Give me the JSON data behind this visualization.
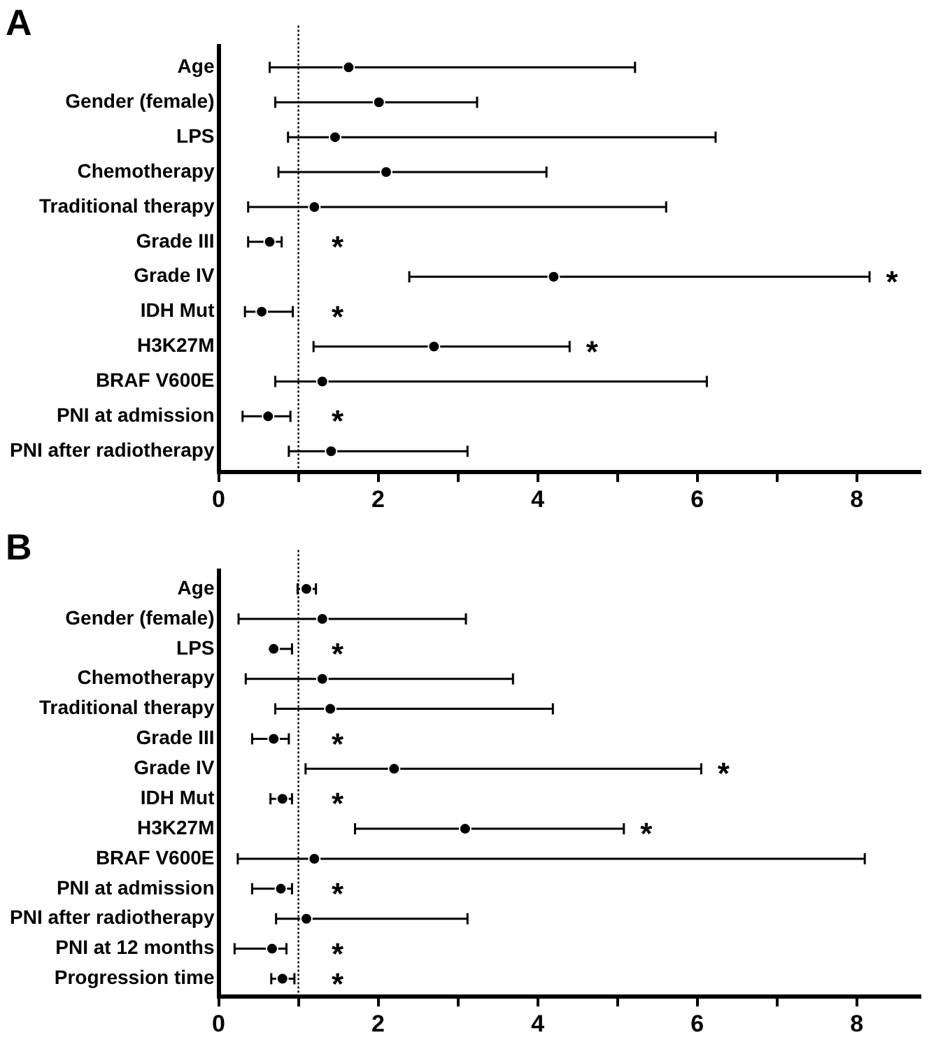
{
  "chart_data": [
    {
      "type": "scatter",
      "title": "A",
      "orientation": "horizontal",
      "marker": "circle",
      "color": "#000000",
      "categories": [
        "Age",
        "Gender (female)",
        "LPS",
        "Chemotherapy",
        "Traditional therapy",
        "Grade III",
        "Grade IV",
        "IDH Mut",
        "H3K27M",
        "BRAF V600E",
        "PNI at admission",
        "PNI after radiotherapy"
      ],
      "values": [
        1.63,
        2.01,
        1.46,
        2.1,
        1.2,
        0.64,
        4.2,
        0.54,
        2.7,
        1.3,
        0.62,
        1.41
      ],
      "errors": [
        [
          0.64,
          5.22
        ],
        [
          0.71,
          3.24
        ],
        [
          0.87,
          6.23
        ],
        [
          0.75,
          4.11
        ],
        [
          0.37,
          5.61
        ],
        [
          0.37,
          0.79
        ],
        [
          2.39,
          8.16
        ],
        [
          0.33,
          0.93
        ],
        [
          1.19,
          4.4
        ],
        [
          0.71,
          6.12
        ],
        [
          0.3,
          0.9
        ],
        [
          0.88,
          3.12
        ]
      ],
      "xlim": [
        0,
        8.8
      ],
      "xticks": [
        0,
        {
          "value": 1,
          "label": null
        },
        2,
        {
          "value": 3,
          "label": null
        },
        4,
        {
          "value": 5,
          "label": null
        },
        6,
        {
          "value": 7,
          "label": null
        },
        8
      ],
      "ref_lines": [
        {
          "axis": "x",
          "value": 1,
          "line_style": "dotted",
          "color": "#000000"
        }
      ],
      "annotations": [
        {
          "text": "*",
          "x": 0.79,
          "y": "Grade III"
        },
        {
          "text": "*",
          "x": 8.16,
          "y": "Grade IV"
        },
        {
          "text": "*",
          "x": 0.93,
          "y": "IDH Mut"
        },
        {
          "text": "*",
          "x": 4.4,
          "y": "H3K27M"
        },
        {
          "text": "*",
          "x": 0.9,
          "y": "PNI at admission"
        }
      ]
    },
    {
      "type": "scatter",
      "title": "B",
      "orientation": "horizontal",
      "marker": "circle",
      "color": "#000000",
      "categories": [
        "Age",
        "Gender (female)",
        "LPS",
        "Chemotherapy",
        "Traditional therapy",
        "Grade III",
        "Grade IV",
        "IDH Mut",
        "H3K27M",
        "BRAF V600E",
        "PNI at admission",
        "PNI after radiotherapy",
        "PNI at 12 months",
        "Progression time"
      ],
      "values": [
        1.1,
        1.3,
        0.69,
        1.3,
        1.4,
        0.69,
        2.2,
        0.8,
        3.09,
        1.2,
        0.78,
        1.1,
        0.67,
        0.8
      ],
      "errors": [
        [
          0.99,
          1.22
        ],
        [
          0.25,
          3.1
        ],
        [
          0.66,
          0.92
        ],
        [
          0.34,
          3.69
        ],
        [
          0.71,
          4.19
        ],
        [
          0.42,
          0.88
        ],
        [
          1.09,
          6.05
        ],
        [
          0.65,
          0.92
        ],
        [
          1.71,
          5.08
        ],
        [
          0.24,
          8.1
        ],
        [
          0.42,
          0.92
        ],
        [
          0.72,
          3.12
        ],
        [
          0.2,
          0.85
        ],
        [
          0.66,
          0.95
        ]
      ],
      "xlim": [
        0,
        8.8
      ],
      "xticks": [
        0,
        {
          "value": 1,
          "label": null
        },
        2,
        {
          "value": 3,
          "label": null
        },
        4,
        {
          "value": 5,
          "label": null
        },
        6,
        {
          "value": 7,
          "label": null
        },
        8
      ],
      "ref_lines": [
        {
          "axis": "x",
          "value": 1,
          "line_style": "dotted",
          "color": "#000000"
        }
      ],
      "annotations": [
        {
          "text": "*",
          "x": 0.92,
          "y": "LPS"
        },
        {
          "text": "*",
          "x": 0.88,
          "y": "Grade III"
        },
        {
          "text": "*",
          "x": 6.05,
          "y": "Grade IV"
        },
        {
          "text": "*",
          "x": 0.92,
          "y": "IDH Mut"
        },
        {
          "text": "*",
          "x": 5.08,
          "y": "H3K27M"
        },
        {
          "text": "*",
          "x": 0.92,
          "y": "PNI at admission"
        },
        {
          "text": "*",
          "x": 0.85,
          "y": "PNI at 12 months"
        },
        {
          "text": "*",
          "x": 0.95,
          "y": "Progression time"
        }
      ]
    }
  ]
}
